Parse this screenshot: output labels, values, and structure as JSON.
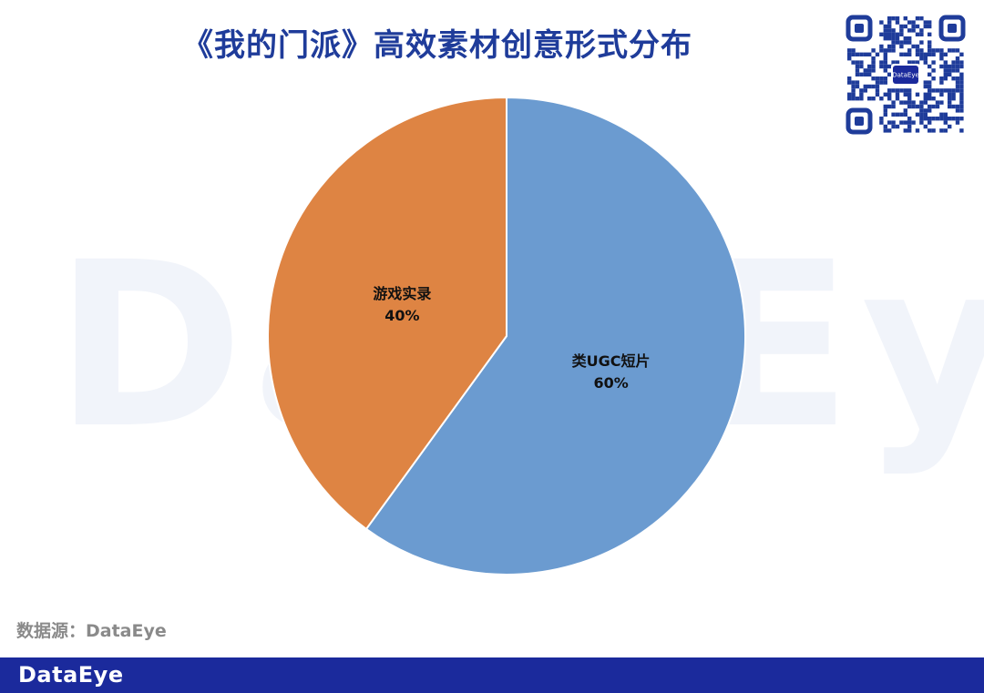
{
  "header": {
    "title": "《我的门派》高效素材创意形式分布"
  },
  "watermark": {
    "text": "DataEye"
  },
  "qr": {
    "logo_text": "DataEye"
  },
  "source": {
    "label": "数据源：DataEye"
  },
  "footer": {
    "brand": "DataEye"
  },
  "chart_data": {
    "type": "pie",
    "slices": [
      {
        "label": "类UGC短片",
        "value": 60,
        "value_label": "60%",
        "color": "#6b9bd0"
      },
      {
        "label": "游戏实录",
        "value": 40,
        "value_label": "40%",
        "color": "#de8443"
      }
    ],
    "start": "12 o'clock",
    "direction": "clockwise"
  }
}
